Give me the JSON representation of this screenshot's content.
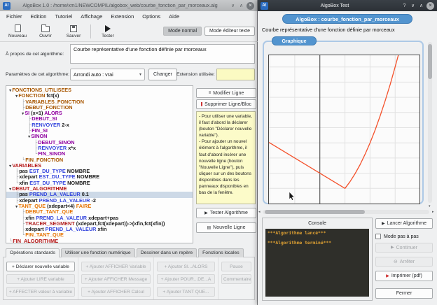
{
  "colors": {
    "accent": "#5294cf",
    "accent_border": "#3f7cb5",
    "selection": "#cdd9e7",
    "console_text": "#dfa133",
    "curve": "#f4512b"
  },
  "token_colors": {
    "func": "#a85600",
    "cond": "#9000a0",
    "kw": "#3344dd",
    "var": "#b41414",
    "loop": "#e67300",
    "draw": "#b22222",
    "plain": "#1a1a1a"
  },
  "left_window": {
    "title": "AlgoBox 1.0 : /home/xm1/NEWCOMPIL/algobox_web/courbe_fonction_par_morceaux.alg",
    "menu": [
      "Fichier",
      "Edition",
      "Tutoriel",
      "Affichage",
      "Extension",
      "Options",
      "Aide"
    ],
    "toolbar": {
      "nouveau": "Nouveau",
      "ouvrir": "Ouvrir",
      "sauver": "Sauver",
      "tester": "Tester",
      "mode_normal": "Mode normal",
      "mode_editeur_texte": "Mode éditeur texte"
    },
    "about": {
      "label": "À propos de cet algorithme:",
      "value": "Courbe représentative d'une fonction définie par morceaux"
    },
    "params": {
      "label": "Paramètres de cet algorithme:",
      "value": "Arrondi auto : vrai",
      "change_button": "Changer",
      "extension_label": "Extension utilisée:",
      "extension_value": ""
    },
    "side_panel": {
      "modify": "Modifier Ligne",
      "delete": "Supprimer Ligne/Bloc",
      "help_text": "- Pour utiliser une variable, il faut d'abord la déclarer (bouton \"Déclarer nouvelle variable\").\n- Pour ajouter un nouvel élément à l'algorithme, il faut d'abord insérer une nouvelle ligne (bouton \"Nouvelle Ligne\"), puis cliquer sur un des boutons disponibles dans les panneaux disponibles en bas de la fenêtre.",
      "test": "Tester Algorithme",
      "new_line": "Nouvelle Ligne"
    },
    "tabs": [
      {
        "label": "Opérations standards",
        "active": true
      },
      {
        "label": "Utiliser une fonction numérique",
        "active": false
      },
      {
        "label": "Dessiner dans un repère",
        "active": false
      },
      {
        "label": "Fonctions locales",
        "active": false
      }
    ],
    "ops_columns": [
      [
        {
          "label": "+ Déclarer nouvelle variable",
          "enabled": true
        },
        {
          "label": "+ Ajouter LIRE variable",
          "enabled": false
        },
        {
          "label": "+ AFFECTER valeur à variable",
          "enabled": false
        }
      ],
      [
        {
          "label": "+ Ajouter AFFICHER Variable",
          "enabled": false
        },
        {
          "label": "+ Ajouter AFFICHER Message",
          "enabled": false
        },
        {
          "label": "+ Ajouter AFFICHER Calcul",
          "enabled": false
        }
      ],
      [
        {
          "label": "+ Ajouter SI...ALORS",
          "enabled": false
        },
        {
          "label": "+ Ajouter POUR...DE...A",
          "enabled": false
        },
        {
          "label": "+ Ajouter TANT QUE...",
          "enabled": false
        }
      ],
      [
        {
          "label": "Pause",
          "enabled": false
        },
        {
          "label": "Commentaire",
          "enabled": false
        }
      ]
    ]
  },
  "algorithm_tree": {
    "lines": [
      {
        "prefix": "▼",
        "depth": 0,
        "segments": [
          [
            "FONCTIONS_UTILISEES",
            "func"
          ]
        ]
      },
      {
        "prefix": "▼",
        "depth": 1,
        "segments": [
          [
            "FONCTION ",
            "func"
          ],
          [
            "fct(x)",
            "plain"
          ]
        ]
      },
      {
        "prefix": "├",
        "depth": 2,
        "segments": [
          [
            "VARIABLES_FONCTION",
            "func"
          ]
        ]
      },
      {
        "prefix": "├",
        "depth": 2,
        "segments": [
          [
            "DEBUT_FONCTION",
            "func"
          ]
        ]
      },
      {
        "prefix": "▼",
        "depth": 2,
        "segments": [
          [
            "SI ",
            "cond"
          ],
          [
            "(x<1) ",
            "plain"
          ],
          [
            "ALORS",
            "cond"
          ]
        ]
      },
      {
        "prefix": "├",
        "depth": 3,
        "segments": [
          [
            "DEBUT_SI",
            "cond"
          ]
        ]
      },
      {
        "prefix": "├",
        "depth": 3,
        "segments": [
          [
            "RENVOYER ",
            "kw"
          ],
          [
            "2-x",
            "plain"
          ]
        ]
      },
      {
        "prefix": "├",
        "depth": 3,
        "segments": [
          [
            "FIN_SI",
            "cond"
          ]
        ]
      },
      {
        "prefix": "▼",
        "depth": 3,
        "segments": [
          [
            "SINON",
            "cond"
          ]
        ]
      },
      {
        "prefix": "├",
        "depth": 4,
        "segments": [
          [
            "DEBUT_SINON",
            "cond"
          ]
        ]
      },
      {
        "prefix": "├",
        "depth": 4,
        "segments": [
          [
            "RENVOYER ",
            "kw"
          ],
          [
            "x*x",
            "plain"
          ]
        ]
      },
      {
        "prefix": "└",
        "depth": 4,
        "segments": [
          [
            "FIN_SINON",
            "cond"
          ]
        ]
      },
      {
        "prefix": "└",
        "depth": 2,
        "segments": [
          [
            "FIN_FONCTION",
            "func"
          ]
        ]
      },
      {
        "prefix": "▼",
        "depth": 0,
        "segments": [
          [
            "VARIABLES",
            "var"
          ]
        ]
      },
      {
        "prefix": "├",
        "depth": 1,
        "segments": [
          [
            "pas ",
            "plain"
          ],
          [
            "EST_DU_TYPE ",
            "kw"
          ],
          [
            "NOMBRE",
            "plain"
          ]
        ]
      },
      {
        "prefix": "├",
        "depth": 1,
        "segments": [
          [
            "xdepart ",
            "plain"
          ],
          [
            "EST_DU_TYPE ",
            "kw"
          ],
          [
            "NOMBRE",
            "plain"
          ]
        ]
      },
      {
        "prefix": "└",
        "depth": 1,
        "segments": [
          [
            "xfin ",
            "plain"
          ],
          [
            "EST_DU_TYPE ",
            "kw"
          ],
          [
            "NOMBRE",
            "plain"
          ]
        ]
      },
      {
        "prefix": "▼",
        "depth": 0,
        "segments": [
          [
            "DEBUT_ALGORITHME",
            "var"
          ]
        ]
      },
      {
        "prefix": "├",
        "depth": 1,
        "selected": true,
        "segments": [
          [
            "pas ",
            "plain"
          ],
          [
            "PREND_LA_VALEUR ",
            "kw"
          ],
          [
            "0.1",
            "plain"
          ]
        ]
      },
      {
        "prefix": "├",
        "depth": 1,
        "segments": [
          [
            "xdepart ",
            "plain"
          ],
          [
            "PREND_LA_VALEUR ",
            "kw"
          ],
          [
            "-2",
            "plain"
          ]
        ]
      },
      {
        "prefix": "▼",
        "depth": 1,
        "segments": [
          [
            "TANT_QUE ",
            "loop"
          ],
          [
            "(xdepart<4) ",
            "plain"
          ],
          [
            "FAIRE",
            "loop"
          ]
        ]
      },
      {
        "prefix": "├",
        "depth": 2,
        "segments": [
          [
            "DEBUT_TANT_QUE",
            "loop"
          ]
        ]
      },
      {
        "prefix": "├",
        "depth": 2,
        "segments": [
          [
            "xfin ",
            "plain"
          ],
          [
            "PREND_LA_VALEUR ",
            "kw"
          ],
          [
            "xdepart+pas",
            "plain"
          ]
        ]
      },
      {
        "prefix": "├",
        "depth": 2,
        "segments": [
          [
            "TRACER_SEGMENT ",
            "draw"
          ],
          [
            "(xdepart,fct(xdepart))->(xfin,fct(xfin))",
            "plain"
          ]
        ]
      },
      {
        "prefix": "├",
        "depth": 2,
        "segments": [
          [
            "xdepart ",
            "plain"
          ],
          [
            "PREND_LA_VALEUR ",
            "kw"
          ],
          [
            "xfin",
            "plain"
          ]
        ]
      },
      {
        "prefix": "└",
        "depth": 2,
        "segments": [
          [
            "FIN_TANT_QUE",
            "loop"
          ]
        ]
      },
      {
        "prefix": "└",
        "depth": 0,
        "segments": [
          [
            "FIN_ALGORITHME",
            "var"
          ]
        ]
      }
    ]
  },
  "right_window": {
    "title": "AlgoBox Test",
    "banner": "AlgoBox : courbe_fonction_par_morceaux",
    "description": "Courbe représentative d'une fonction définie par morceaux",
    "graph_tab": "Graphique",
    "console": {
      "title": "Console",
      "lines": [
        "***Algorithme lancé***",
        "",
        "***Algorithme terminé***"
      ]
    },
    "buttons": {
      "run": "Lancer Algorithme",
      "step_mode": "Mode pas à pas",
      "continue": "Continuer",
      "stop": "Arrêter",
      "print": "Imprimer (pdf)",
      "close": "Fermer"
    }
  },
  "chart_data": {
    "type": "line",
    "series": [
      {
        "name": "fct",
        "points": [
          [
            -2.03,
            4.03
          ],
          [
            -2,
            4
          ],
          [
            1,
            1
          ],
          [
            1.2,
            1.44
          ],
          [
            1.4,
            1.96
          ],
          [
            1.6,
            2.56
          ],
          [
            1.8,
            3.24
          ],
          [
            2,
            4
          ],
          [
            2.2,
            4.84
          ],
          [
            2.4,
            5.76
          ],
          [
            2.6,
            6.76
          ],
          [
            2.8,
            7.84
          ],
          [
            3,
            9
          ],
          [
            3.14,
            9.86
          ]
        ]
      }
    ],
    "x_visible": [
      -2.03,
      3.97
    ],
    "y_visible": [
      0,
      9.77
    ],
    "grid_step": 1,
    "axis_x": 0,
    "grid": true,
    "legend": false
  }
}
